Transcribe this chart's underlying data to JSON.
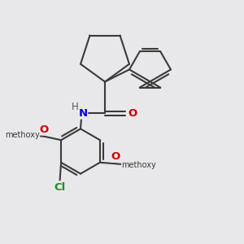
{
  "background_color": "#e8e8ea",
  "bond_color": "#3a3a3a",
  "atom_colors": {
    "N": "#0000cc",
    "O": "#cc0000",
    "Cl": "#228b22",
    "H": "#555555",
    "C": "#3a3a3a"
  },
  "figsize": [
    3.0,
    3.0
  ],
  "dpi": 100
}
